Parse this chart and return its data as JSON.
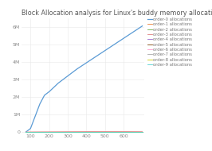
{
  "title": "Block Allocation analysis for Linux's buddy memory allocation technique",
  "x_values": [
    75,
    100,
    125,
    150,
    175,
    200,
    250,
    300,
    350,
    400,
    450,
    500,
    550,
    600,
    650,
    700
  ],
  "series": [
    {
      "label": "order-0 allocations",
      "color": "#5B9BD5",
      "y": [
        0,
        200000,
        900000,
        1600000,
        2100000,
        2300000,
        2800000,
        3200000,
        3600000,
        3950000,
        4300000,
        4650000,
        5000000,
        5350000,
        5700000,
        6050000
      ]
    },
    {
      "label": "order-1 allocations",
      "color": "#ED7D31",
      "y": [
        0,
        0,
        0,
        0,
        0,
        0,
        0,
        0,
        0,
        0,
        0,
        0,
        0,
        0,
        0,
        0
      ]
    },
    {
      "label": "order-2 allocations",
      "color": "#70AD47",
      "y": [
        0,
        0,
        0,
        0,
        0,
        0,
        0,
        0,
        0,
        0,
        0,
        0,
        0,
        0,
        0,
        0
      ]
    },
    {
      "label": "order-3 allocations",
      "color": "#E08080",
      "y": [
        0,
        5000,
        8000,
        10000,
        11000,
        12000,
        15000,
        18000,
        20000,
        22000,
        24000,
        26000,
        28000,
        30000,
        32000,
        34000
      ]
    },
    {
      "label": "order-4 allocations",
      "color": "#9966CC",
      "y": [
        0,
        0,
        0,
        0,
        0,
        0,
        0,
        0,
        0,
        0,
        0,
        0,
        0,
        0,
        0,
        0
      ]
    },
    {
      "label": "order-5 allocations",
      "color": "#7B3F00",
      "y": [
        0,
        0,
        0,
        0,
        0,
        0,
        0,
        0,
        0,
        0,
        0,
        0,
        0,
        0,
        0,
        0
      ]
    },
    {
      "label": "order-6 allocations",
      "color": "#FF99CC",
      "y": [
        0,
        0,
        0,
        0,
        0,
        0,
        0,
        0,
        0,
        0,
        0,
        0,
        0,
        0,
        0,
        0
      ]
    },
    {
      "label": "order-7 allocations",
      "color": "#AAAAAA",
      "y": [
        0,
        0,
        0,
        0,
        0,
        0,
        0,
        0,
        0,
        0,
        0,
        0,
        0,
        0,
        0,
        0
      ]
    },
    {
      "label": "order-8 allocations",
      "color": "#CCCC00",
      "y": [
        0,
        0,
        0,
        0,
        0,
        0,
        0,
        0,
        0,
        0,
        0,
        0,
        0,
        0,
        0,
        0
      ]
    },
    {
      "label": "order-9 allocations",
      "color": "#4DD0D0",
      "y": [
        0,
        0,
        0,
        0,
        0,
        0,
        0,
        0,
        0,
        0,
        0,
        0,
        0,
        0,
        0,
        0
      ]
    }
  ],
  "xlim": [
    50,
    710
  ],
  "ylim": [
    -50000,
    6500000
  ],
  "yticks": [
    0,
    1000000,
    2000000,
    3000000,
    4000000,
    5000000,
    6000000
  ],
  "ytick_labels": [
    "0",
    "1M",
    "2M",
    "3M",
    "4M",
    "5M",
    "6M"
  ],
  "xticks": [
    100,
    200,
    300,
    400,
    500,
    600
  ],
  "background_color": "#FFFFFF",
  "grid_color": "#E8E8E8",
  "title_fontsize": 5.8,
  "tick_fontsize": 4.5,
  "legend_fontsize": 3.8
}
